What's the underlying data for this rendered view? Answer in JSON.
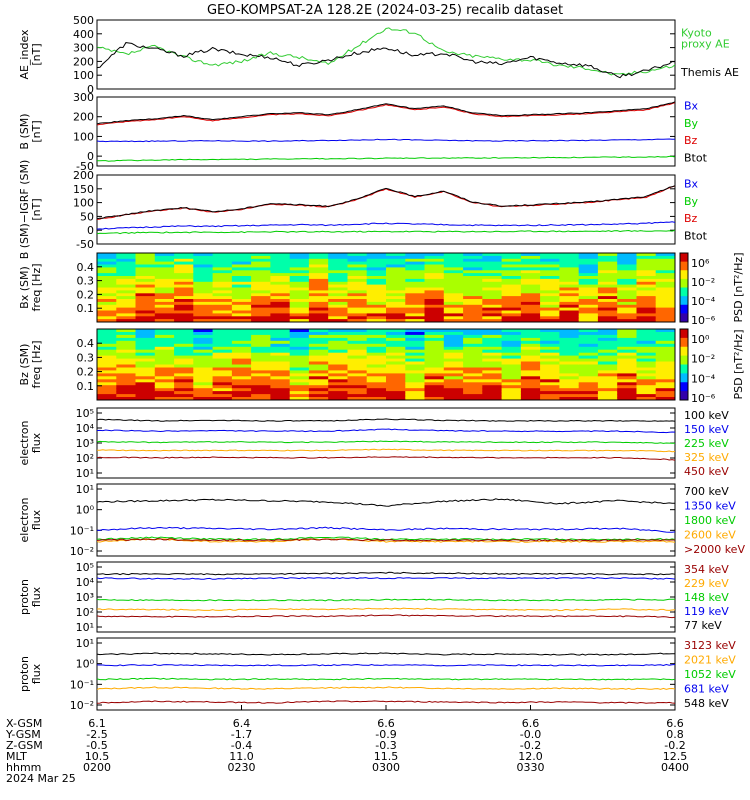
{
  "title": "GEO-KOMPSAT-2A 128.2E (2024-03-25) recalib dataset",
  "colors": {
    "black": "#000000",
    "blue": "#0000ee",
    "green": "#00cc00",
    "red": "#dd0000",
    "orange": "#ffaa00",
    "darkred": "#990000",
    "kyoto": "#33cc33"
  },
  "chart_data": [
    {
      "type": "line",
      "id": "ae",
      "ylabel": "AE_index\n[nT]",
      "ylim": [
        0,
        500
      ],
      "yticks": [
        "500",
        "400",
        "300",
        "200",
        "100",
        "0"
      ],
      "legend": [
        {
          "label": "Kyoto\nproxy AE",
          "color": "#33cc33"
        },
        {
          "label": "Themis AE",
          "color": "#000000"
        }
      ],
      "x": [
        0,
        0.05,
        0.1,
        0.15,
        0.2,
        0.25,
        0.3,
        0.35,
        0.4,
        0.45,
        0.5,
        0.55,
        0.6,
        0.65,
        0.7,
        0.75,
        0.8,
        0.85,
        0.9,
        0.95,
        1.0
      ],
      "series": [
        {
          "name": "Kyoto proxy AE",
          "color": "#33cc33",
          "values": [
            300,
            250,
            310,
            230,
            175,
            200,
            260,
            230,
            180,
            310,
            440,
            410,
            270,
            240,
            220,
            210,
            170,
            150,
            100,
            130,
            170
          ]
        },
        {
          "name": "Themis AE",
          "color": "#000000",
          "values": [
            150,
            330,
            290,
            240,
            290,
            250,
            230,
            170,
            210,
            260,
            300,
            240,
            260,
            200,
            180,
            230,
            190,
            170,
            90,
            130,
            200
          ]
        }
      ]
    },
    {
      "type": "line",
      "id": "bsm",
      "ylabel": "B (SM)\n[nT]",
      "ylim": [
        -50,
        300
      ],
      "yticks": [
        "300",
        "200",
        "100",
        "0",
        "-50"
      ],
      "legend": [
        {
          "label": "Bx",
          "color": "#0000ee"
        },
        {
          "label": "By",
          "color": "#00cc00"
        },
        {
          "label": "Bz",
          "color": "#dd0000"
        },
        {
          "label": "Btot",
          "color": "#000000"
        }
      ],
      "x": [
        0,
        0.05,
        0.1,
        0.15,
        0.2,
        0.25,
        0.3,
        0.35,
        0.4,
        0.45,
        0.5,
        0.55,
        0.6,
        0.65,
        0.7,
        0.75,
        0.8,
        0.85,
        0.9,
        0.95,
        1.0
      ],
      "series": [
        {
          "name": "Bx",
          "color": "#0000ee",
          "values": [
            75,
            75,
            76,
            77,
            78,
            77,
            76,
            78,
            80,
            82,
            85,
            82,
            80,
            78,
            77,
            78,
            79,
            80,
            82,
            84,
            86
          ]
        },
        {
          "name": "By",
          "color": "#00cc00",
          "values": [
            -25,
            -22,
            -20,
            -18,
            -17,
            -16,
            -15,
            -14,
            -13,
            -12,
            -11,
            -10,
            -10,
            -9,
            -9,
            -8,
            -7,
            -6,
            -5,
            -4,
            -3
          ]
        },
        {
          "name": "Bz",
          "color": "#dd0000",
          "values": [
            160,
            175,
            185,
            200,
            180,
            195,
            210,
            215,
            205,
            230,
            260,
            235,
            250,
            215,
            200,
            205,
            210,
            215,
            225,
            235,
            270
          ]
        },
        {
          "name": "Btot",
          "color": "#000000",
          "values": [
            165,
            180,
            190,
            205,
            185,
            200,
            215,
            220,
            210,
            235,
            265,
            240,
            255,
            220,
            205,
            210,
            215,
            220,
            230,
            240,
            275
          ]
        }
      ]
    },
    {
      "type": "line",
      "id": "bdiff",
      "ylabel": "B (SM)−IGRF (SM)\n[nT]",
      "ylim": [
        -50,
        200
      ],
      "yticks": [
        "200",
        "150",
        "100",
        "50",
        "0",
        "-50"
      ],
      "legend": [
        {
          "label": "Bx",
          "color": "#0000ee"
        },
        {
          "label": "By",
          "color": "#00cc00"
        },
        {
          "label": "Bz",
          "color": "#dd0000"
        },
        {
          "label": "Btot",
          "color": "#000000"
        }
      ],
      "x": [
        0,
        0.05,
        0.1,
        0.15,
        0.2,
        0.25,
        0.3,
        0.35,
        0.4,
        0.45,
        0.5,
        0.55,
        0.6,
        0.65,
        0.7,
        0.75,
        0.8,
        0.85,
        0.9,
        0.95,
        1.0
      ],
      "series": [
        {
          "name": "Bx",
          "color": "#0000ee",
          "values": [
            5,
            8,
            12,
            15,
            14,
            16,
            18,
            20,
            18,
            22,
            25,
            22,
            20,
            18,
            17,
            18,
            19,
            20,
            22,
            25,
            30
          ]
        },
        {
          "name": "By",
          "color": "#00cc00",
          "values": [
            -12,
            -10,
            -8,
            -8,
            -7,
            -7,
            -6,
            -6,
            -6,
            -5,
            -5,
            -5,
            -5,
            -5,
            -5,
            -4,
            -4,
            -4,
            -3,
            -3,
            -2
          ]
        },
        {
          "name": "Bz",
          "color": "#dd0000",
          "values": [
            40,
            55,
            70,
            80,
            65,
            75,
            95,
            90,
            85,
            110,
            150,
            120,
            140,
            100,
            85,
            90,
            95,
            100,
            110,
            120,
            160
          ]
        },
        {
          "name": "Btot",
          "color": "#000000",
          "values": [
            42,
            57,
            72,
            82,
            67,
            77,
            97,
            92,
            87,
            112,
            152,
            122,
            142,
            102,
            87,
            92,
            97,
            102,
            112,
            122,
            162
          ]
        }
      ]
    },
    {
      "type": "heatmap",
      "id": "bx_spec",
      "ylabel": "Bx (SM)\nfreq [Hz]",
      "ylim": [
        0,
        0.5
      ],
      "yticks": [
        "0.4",
        "0.3",
        "0.2",
        "0.1"
      ],
      "colorbar": {
        "label": "PSD [nT²/Hz]",
        "ticks": [
          "10⁶",
          "10⁻²",
          "10⁻⁴",
          "10⁻⁶"
        ]
      }
    },
    {
      "type": "heatmap",
      "id": "bz_spec",
      "ylabel": "Bz (SM)\nfreq [Hz]",
      "ylim": [
        0,
        0.5
      ],
      "yticks": [
        "0.4",
        "0.3",
        "0.2",
        "0.1"
      ],
      "colorbar": {
        "label": "PSD [nT²/Hz]",
        "ticks": [
          "10⁰",
          "10⁻²",
          "10⁻⁴",
          "10⁻⁶"
        ]
      }
    },
    {
      "type": "line",
      "id": "e_low",
      "ylabel": "electron\nflux",
      "yscale": "log",
      "ylim": [
        1,
        100000
      ],
      "yticks": [
        "10⁵",
        "10⁴",
        "10³",
        "10²",
        "10¹"
      ],
      "legend": [
        {
          "label": "100 keV",
          "color": "#000000"
        },
        {
          "label": "150 keV",
          "color": "#0000ee"
        },
        {
          "label": "225 keV",
          "color": "#00cc00"
        },
        {
          "label": "325 keV",
          "color": "#ffaa00"
        },
        {
          "label": "450 keV",
          "color": "#990000"
        }
      ],
      "x": [
        0,
        0.1,
        0.2,
        0.3,
        0.4,
        0.5,
        0.6,
        0.7,
        0.8,
        0.9,
        1.0
      ],
      "series": [
        {
          "name": "100 keV",
          "color": "#000000",
          "values": [
            15000,
            12000,
            13000,
            12000,
            12000,
            16000,
            13000,
            12000,
            12000,
            12000,
            12000
          ]
        },
        {
          "name": "150 keV",
          "color": "#0000ee",
          "values": [
            2600,
            2200,
            2400,
            2200,
            2200,
            3000,
            2400,
            2200,
            2200,
            2200,
            1800
          ]
        },
        {
          "name": "225 keV",
          "color": "#00cc00",
          "values": [
            400,
            350,
            380,
            360,
            360,
            420,
            380,
            360,
            360,
            360,
            300
          ]
        },
        {
          "name": "325 keV",
          "color": "#ffaa00",
          "values": [
            100,
            90,
            95,
            92,
            92,
            110,
            95,
            92,
            92,
            90,
            80
          ]
        },
        {
          "name": "450 keV",
          "color": "#990000",
          "values": [
            30,
            28,
            30,
            28,
            28,
            32,
            30,
            28,
            28,
            28,
            20
          ]
        }
      ]
    },
    {
      "type": "line",
      "id": "e_high",
      "ylabel": "electron\nflux",
      "yscale": "log",
      "ylim": [
        0.01,
        10
      ],
      "yticks": [
        "10¹",
        "10⁰",
        "10⁻¹",
        "10⁻²"
      ],
      "legend": [
        {
          "label": "700 keV",
          "color": "#000000"
        },
        {
          "label": "1350 keV",
          "color": "#0000ee"
        },
        {
          "label": "1800 keV",
          "color": "#00cc00"
        },
        {
          "label": "2600 keV",
          "color": "#ffaa00"
        },
        {
          "label": ">2000 keV",
          "color": "#990000"
        }
      ],
      "x": [
        0,
        0.1,
        0.2,
        0.3,
        0.4,
        0.5,
        0.6,
        0.7,
        0.8,
        0.9,
        1.0
      ],
      "series": [
        {
          "name": "700 keV",
          "color": "#000000",
          "values": [
            1.8,
            2.0,
            2.2,
            2.0,
            1.8,
            1.2,
            1.9,
            2.3,
            1.5,
            2.0,
            1.5
          ]
        },
        {
          "name": "1350 keV",
          "color": "#0000ee",
          "values": [
            0.12,
            0.15,
            0.14,
            0.13,
            0.15,
            0.12,
            0.14,
            0.13,
            0.13,
            0.14,
            0.1
          ]
        },
        {
          "name": "1800 keV",
          "color": "#00cc00",
          "values": [
            0.05,
            0.06,
            0.05,
            0.05,
            0.06,
            0.05,
            0.05,
            0.05,
            0.05,
            0.05,
            0.05
          ]
        },
        {
          "name": "2600 keV",
          "color": "#ffaa00",
          "values": [
            0.04,
            0.05,
            0.04,
            0.04,
            0.05,
            0.04,
            0.04,
            0.04,
            0.04,
            0.04,
            0.04
          ]
        },
        {
          "name": ">2000 keV",
          "color": "#990000",
          "values": [
            0.045,
            0.05,
            0.045,
            0.045,
            0.05,
            0.045,
            0.045,
            0.045,
            0.045,
            0.045,
            0.045
          ]
        }
      ]
    },
    {
      "type": "line",
      "id": "p_low",
      "ylabel": "proton\nflux",
      "yscale": "log",
      "ylim": [
        10,
        100000
      ],
      "yticks": [
        "10⁵",
        "10⁴",
        "10³",
        "10²",
        "10¹"
      ],
      "legend": [
        {
          "label": "354 keV",
          "color": "#990000"
        },
        {
          "label": "229 keV",
          "color": "#ffaa00"
        },
        {
          "label": "148 keV",
          "color": "#00cc00"
        },
        {
          "label": "119 keV",
          "color": "#0000ee"
        },
        {
          "label": "77 keV",
          "color": "#000000"
        }
      ],
      "x": [
        0,
        0.1,
        0.2,
        0.3,
        0.4,
        0.5,
        0.6,
        0.7,
        0.8,
        0.9,
        1.0
      ],
      "series": [
        {
          "name": "77 keV",
          "color": "#000000",
          "values": [
            20000,
            21000,
            20000,
            21000,
            22000,
            24000,
            23000,
            21000,
            21000,
            20000,
            20000
          ]
        },
        {
          "name": "119 keV",
          "color": "#0000ee",
          "values": [
            12000,
            11000,
            11000,
            12000,
            12000,
            12000,
            12000,
            12000,
            12000,
            12000,
            11000
          ]
        },
        {
          "name": "148 keV",
          "color": "#00cc00",
          "values": [
            700,
            650,
            650,
            650,
            650,
            700,
            700,
            650,
            650,
            700,
            700
          ]
        },
        {
          "name": "229 keV",
          "color": "#ffaa00",
          "values": [
            200,
            190,
            180,
            200,
            200,
            220,
            210,
            190,
            180,
            200,
            180
          ]
        },
        {
          "name": "354 keV",
          "color": "#990000",
          "values": [
            80,
            75,
            75,
            80,
            80,
            90,
            85,
            80,
            80,
            80,
            70
          ]
        }
      ]
    },
    {
      "type": "line",
      "id": "p_high",
      "ylabel": "proton\nflux",
      "yscale": "log",
      "ylim": [
        0.01,
        100
      ],
      "yticks": [
        "10¹",
        "10⁰",
        "10⁻¹",
        "10⁻²"
      ],
      "legend": [
        {
          "label": "3123 keV",
          "color": "#990000"
        },
        {
          "label": "2021 keV",
          "color": "#ffaa00"
        },
        {
          "label": "1052 keV",
          "color": "#00cc00"
        },
        {
          "label": "681 keV",
          "color": "#0000ee"
        },
        {
          "label": "548 keV",
          "color": "#000000"
        }
      ],
      "x": [
        0,
        0.1,
        0.2,
        0.3,
        0.4,
        0.5,
        0.6,
        0.7,
        0.8,
        0.9,
        1.0
      ],
      "series": [
        {
          "name": "548 keV",
          "color": "#000000",
          "values": [
            12,
            14,
            13,
            12,
            13,
            14,
            12,
            13,
            12,
            12,
            14
          ]
        },
        {
          "name": "681 keV",
          "color": "#0000ee",
          "values": [
            3,
            3.2,
            3,
            3,
            3.1,
            3.2,
            3,
            3.1,
            3,
            3,
            3.2
          ]
        },
        {
          "name": "1052 keV",
          "color": "#00cc00",
          "values": [
            0.5,
            0.55,
            0.5,
            0.52,
            0.5,
            0.55,
            0.5,
            0.52,
            0.5,
            0.5,
            0.5
          ]
        },
        {
          "name": "2021 keV",
          "color": "#ffaa00",
          "values": [
            0.15,
            0.18,
            0.16,
            0.15,
            0.17,
            0.18,
            0.16,
            0.15,
            0.16,
            0.15,
            0.15
          ]
        },
        {
          "name": "3123 keV",
          "color": "#990000",
          "values": [
            0.025,
            0.03,
            0.028,
            0.025,
            0.03,
            0.03,
            0.028,
            0.026,
            0.028,
            0.025,
            0.025
          ]
        }
      ]
    }
  ],
  "orbit": {
    "labels": [
      "X-GSM",
      "Y-GSM",
      "Z-GSM",
      "MLT",
      "hhmm",
      "2024 Mar 25"
    ],
    "columns": [
      [
        "6.1",
        "-2.5",
        "-0.5",
        "10.5",
        "0200"
      ],
      [
        "6.4",
        "-1.7",
        "-0.4",
        "11.0",
        "0230"
      ],
      [
        "6.6",
        "-0.9",
        "-0.3",
        "11.5",
        "0300"
      ],
      [
        "6.6",
        "-0.0",
        "-0.2",
        "12.0",
        "0330"
      ],
      [
        "6.6",
        "0.8",
        "-0.2",
        "12.5",
        "0400"
      ]
    ]
  }
}
